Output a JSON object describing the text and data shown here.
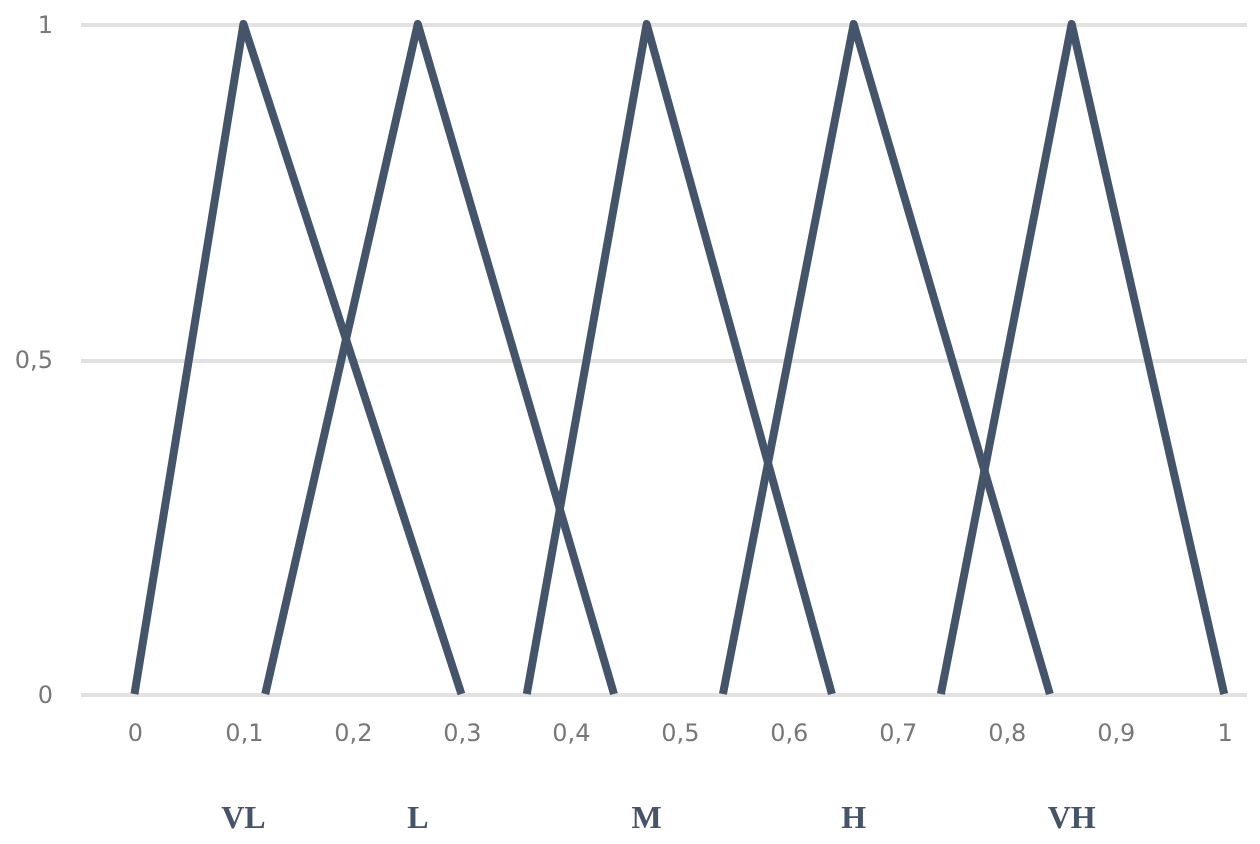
{
  "chart_data": {
    "type": "line",
    "xlim": [
      -0.05,
      1.02
    ],
    "ylim": [
      0,
      1
    ],
    "xticks": [
      0,
      {
        "value": 0.1,
        "label": "0,1"
      },
      {
        "value": 0.2,
        "label": "0,2"
      },
      {
        "value": 0.3,
        "label": "0,3"
      },
      {
        "value": 0.4,
        "label": "0,4"
      },
      {
        "value": 0.5,
        "label": "0,5"
      },
      {
        "value": 0.6,
        "label": "0,6"
      },
      {
        "value": 0.7,
        "label": "0,7"
      },
      {
        "value": 0.8,
        "label": "0,8"
      },
      {
        "value": 0.9,
        "label": "0,9"
      },
      1
    ],
    "yticks": [
      0,
      {
        "value": 0.5,
        "label": "0,5"
      },
      1
    ],
    "grid": "y",
    "marker": "none",
    "line_style": "solid",
    "annotations": [
      "VL",
      "L",
      "M",
      "H",
      "VH"
    ],
    "series": [
      {
        "color": "#44546a",
        "x": [
          0,
          0.1,
          0.3
        ],
        "values": [
          0,
          1,
          0
        ]
      },
      {
        "color": "#44546a",
        "x": [
          0.12,
          0.26,
          0.44
        ],
        "values": [
          0,
          1,
          0
        ]
      },
      {
        "color": "#44546a",
        "x": [
          0.36,
          0.47,
          0.64
        ],
        "values": [
          0,
          1,
          0
        ]
      },
      {
        "color": "#44546a",
        "x": [
          0.54,
          0.66,
          0.84
        ],
        "values": [
          0,
          1,
          0
        ]
      },
      {
        "color": "#44546a",
        "x": [
          0.74,
          0.86,
          1
        ],
        "values": [
          0,
          1,
          0
        ]
      }
    ]
  }
}
